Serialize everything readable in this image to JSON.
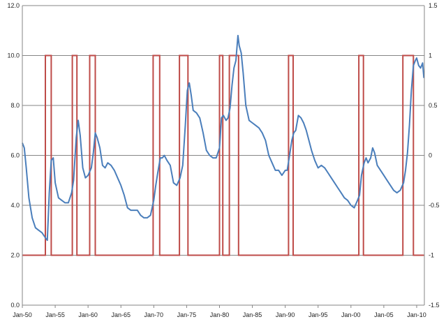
{
  "chart_data": {
    "type": "line",
    "title": "",
    "xlabel": "",
    "ylabel": "",
    "x_tick_labels": [
      "Jan-50",
      "Jan-55",
      "Jan-60",
      "Jan-65",
      "Jan-70",
      "Jan-75",
      "Jan-80",
      "Jan-85",
      "Jan-90",
      "Jan-95",
      "Jan-00",
      "Jan-05",
      "Jan-10"
    ],
    "x_range": [
      "Jan-50",
      "Mar-11"
    ],
    "ylim_left": [
      0,
      12
    ],
    "yticks_left": [
      "0.0",
      "2.0",
      "4.0",
      "6.0",
      "8.0",
      "10.0",
      "12.0"
    ],
    "ylim_right": [
      -1.5,
      1.5
    ],
    "yticks_right": [
      "-1.5",
      "-1",
      "-0.5",
      "0",
      "0.5",
      "1",
      "1.5"
    ],
    "grid": "horizontal",
    "colors": {
      "line": "#4a7ebb",
      "step": "#be4b48",
      "grid": "#868686"
    },
    "series": [
      {
        "axis": "left",
        "style": "line",
        "x": [
          1950.0,
          1950.3,
          1950.6,
          1951.0,
          1951.5,
          1952.0,
          1952.5,
          1953.0,
          1953.5,
          1953.8,
          1954.1,
          1954.4,
          1954.7,
          1955.0,
          1955.5,
          1956.0,
          1956.5,
          1957.0,
          1957.5,
          1957.8,
          1958.2,
          1958.5,
          1958.8,
          1959.2,
          1959.6,
          1960.0,
          1960.5,
          1960.8,
          1961.1,
          1961.4,
          1961.8,
          1962.2,
          1962.6,
          1963.0,
          1963.5,
          1964.0,
          1964.5,
          1965.0,
          1965.5,
          1966.0,
          1966.5,
          1967.0,
          1967.5,
          1968.0,
          1968.5,
          1969.0,
          1969.5,
          1970.0,
          1970.3,
          1970.6,
          1971.0,
          1971.3,
          1971.6,
          1972.0,
          1972.5,
          1973.0,
          1973.5,
          1974.0,
          1974.4,
          1974.8,
          1975.1,
          1975.4,
          1975.7,
          1976.0,
          1976.5,
          1977.0,
          1977.5,
          1978.0,
          1978.5,
          1979.0,
          1979.5,
          1980.0,
          1980.3,
          1980.6,
          1981.0,
          1981.3,
          1981.6,
          1981.9,
          1982.2,
          1982.5,
          1982.8,
          1983.0,
          1983.3,
          1983.6,
          1984.0,
          1984.5,
          1985.0,
          1985.5,
          1986.0,
          1986.5,
          1987.0,
          1987.5,
          1988.0,
          1988.5,
          1989.0,
          1989.5,
          1990.0,
          1990.3,
          1990.6,
          1991.0,
          1991.3,
          1991.6,
          1992.0,
          1992.4,
          1992.8,
          1993.2,
          1993.6,
          1994.0,
          1994.5,
          1995.0,
          1995.5,
          1996.0,
          1996.5,
          1997.0,
          1997.5,
          1998.0,
          1998.5,
          1999.0,
          1999.5,
          2000.0,
          2000.5,
          2001.0,
          2001.3,
          2001.6,
          2002.0,
          2002.3,
          2002.6,
          2003.0,
          2003.3,
          2003.6,
          2004.0,
          2004.5,
          2005.0,
          2005.5,
          2006.0,
          2006.5,
          2007.0,
          2007.5,
          2008.0,
          2008.3,
          2008.6,
          2008.9,
          2009.2,
          2009.5,
          2009.8,
          2010.0,
          2010.3,
          2010.6,
          2010.9,
          2011.1
        ],
        "values": [
          6.5,
          6.3,
          5.5,
          4.3,
          3.5,
          3.1,
          3.0,
          2.9,
          2.7,
          2.6,
          4.5,
          5.8,
          5.9,
          4.9,
          4.3,
          4.2,
          4.1,
          4.1,
          4.5,
          5.0,
          6.7,
          7.4,
          6.8,
          5.5,
          5.1,
          5.2,
          5.5,
          6.1,
          6.9,
          6.7,
          6.3,
          5.6,
          5.5,
          5.7,
          5.6,
          5.4,
          5.1,
          4.8,
          4.4,
          3.9,
          3.8,
          3.8,
          3.8,
          3.6,
          3.5,
          3.5,
          3.6,
          4.2,
          4.8,
          5.3,
          5.9,
          5.9,
          6.0,
          5.8,
          5.6,
          4.9,
          4.8,
          5.1,
          5.6,
          7.2,
          8.6,
          8.9,
          8.4,
          7.8,
          7.7,
          7.5,
          6.9,
          6.2,
          6.0,
          5.9,
          5.9,
          6.3,
          7.5,
          7.6,
          7.4,
          7.5,
          7.9,
          8.8,
          9.5,
          9.8,
          10.8,
          10.4,
          10.1,
          9.3,
          8.0,
          7.4,
          7.3,
          7.2,
          7.1,
          6.9,
          6.6,
          6.0,
          5.7,
          5.4,
          5.4,
          5.2,
          5.4,
          5.4,
          5.9,
          6.6,
          6.9,
          7.0,
          7.6,
          7.5,
          7.3,
          7.0,
          6.6,
          6.2,
          5.8,
          5.5,
          5.6,
          5.5,
          5.3,
          5.1,
          4.9,
          4.7,
          4.5,
          4.3,
          4.2,
          4.0,
          3.9,
          4.2,
          4.4,
          5.2,
          5.7,
          5.9,
          5.7,
          5.9,
          6.3,
          6.1,
          5.6,
          5.4,
          5.2,
          5.0,
          4.8,
          4.6,
          4.5,
          4.6,
          4.9,
          5.4,
          6.1,
          7.2,
          8.6,
          9.6,
          9.8,
          9.9,
          9.6,
          9.5,
          9.7,
          9.1
        ]
      },
      {
        "axis": "right",
        "style": "step",
        "x": [
          1950.0,
          1953.5,
          1954.4,
          1957.6,
          1958.3,
          1960.25,
          1961.1,
          1969.9,
          1970.9,
          1973.9,
          1975.2,
          1980.0,
          1980.5,
          1981.5,
          1982.9,
          1990.5,
          1991.2,
          2001.2,
          2001.9,
          2007.9,
          2009.5,
          2011.1
        ],
        "values": [
          -1,
          1,
          -1,
          1,
          -1,
          1,
          -1,
          1,
          -1,
          1,
          -1,
          1,
          -1,
          1,
          -1,
          1,
          -1,
          1,
          -1,
          1,
          -1,
          -1
        ]
      }
    ]
  }
}
